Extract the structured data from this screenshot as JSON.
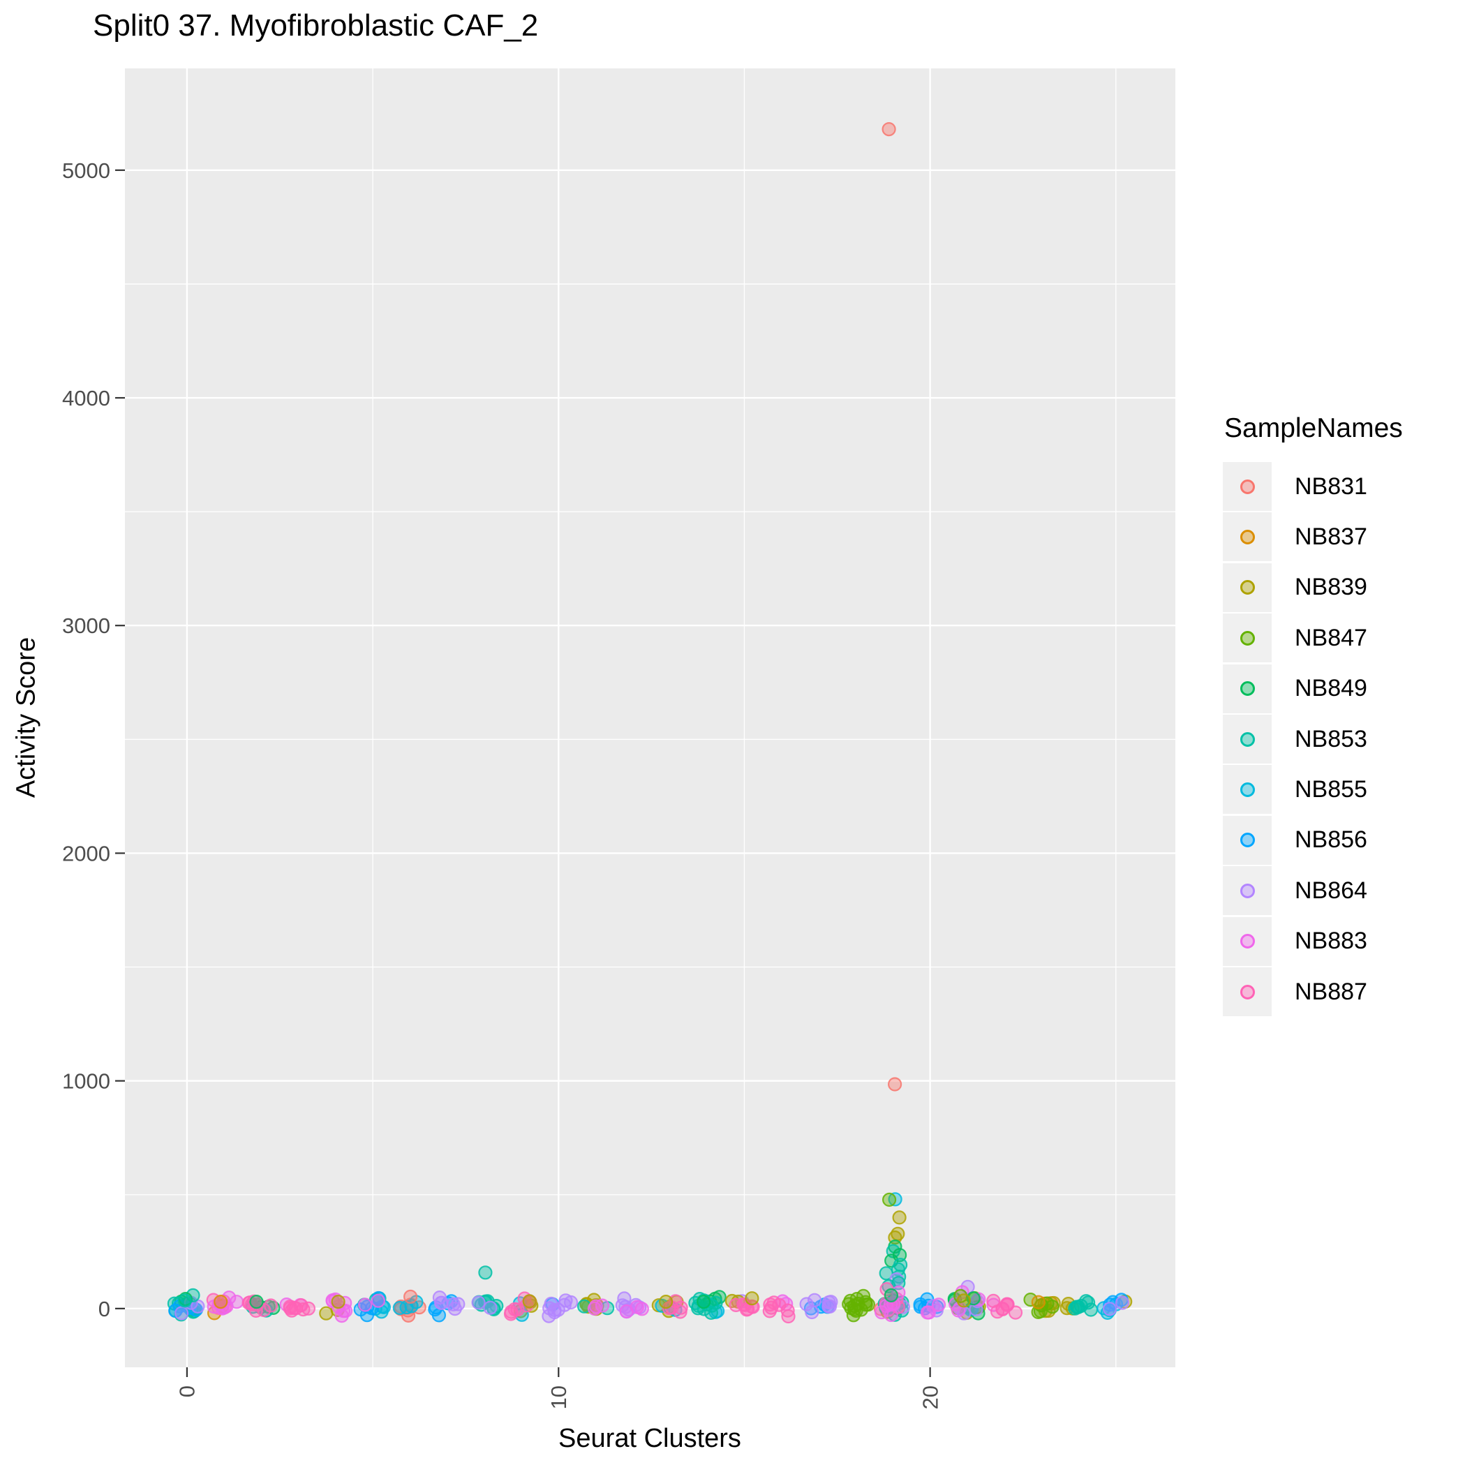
{
  "title": "Split0 37. Myofibroblastic CAF_2",
  "chart_data": {
    "type": "scatter",
    "subtype": "jittered-strip",
    "title": "Split0 37. Myofibroblastic CAF_2",
    "xlabel": "Seurat Clusters",
    "ylabel": "Activity Score",
    "legend_title": "SampleNames",
    "legend_position": "right",
    "grid": true,
    "panel_bg": "#EBEBEB",
    "grid_color": "#FFFFFF",
    "tick_color": "#333333",
    "tick_label_color": "#4D4D4D",
    "x_ticks": [
      0,
      10,
      20
    ],
    "x_minor_ticks": [
      5,
      15,
      25
    ],
    "y_ticks": [
      0,
      1000,
      2000,
      3000,
      4000,
      5000
    ],
    "y_minor_ticks": [
      500,
      1500,
      2500,
      3500,
      4500
    ],
    "xlim": [
      -1.67,
      26.6
    ],
    "ylim": [
      -258,
      5447
    ],
    "point_alpha": 0.42,
    "samples": [
      {
        "name": "NB831",
        "color": "#F8766D"
      },
      {
        "name": "NB837",
        "color": "#DB8E00"
      },
      {
        "name": "NB839",
        "color": "#AEA200"
      },
      {
        "name": "NB847",
        "color": "#64B200"
      },
      {
        "name": "NB849",
        "color": "#00BD5C"
      },
      {
        "name": "NB853",
        "color": "#00C1A7"
      },
      {
        "name": "NB855",
        "color": "#00BADE"
      },
      {
        "name": "NB856",
        "color": "#00A6FF"
      },
      {
        "name": "NB864",
        "color": "#B385FF"
      },
      {
        "name": "NB883",
        "color": "#EF67EB"
      },
      {
        "name": "NB887",
        "color": "#FF63B6"
      }
    ],
    "band": {
      "note": "dense jittered points near Activity Score 0 for every cluster",
      "y_center": 8,
      "y_spread": 45,
      "x_jitter": 0.34
    },
    "clusters": [
      {
        "cluster": 0,
        "members": [
          [
            "NB849",
            3
          ],
          [
            "NB853",
            9
          ],
          [
            "NB856",
            4
          ],
          [
            "NB864",
            3
          ]
        ]
      },
      {
        "cluster": 1,
        "members": [
          [
            "NB837",
            2
          ],
          [
            "NB887",
            4
          ],
          [
            "NB883",
            7
          ]
        ]
      },
      {
        "cluster": 2,
        "members": [
          [
            "NB849",
            3
          ],
          [
            "NB853",
            2
          ],
          [
            "NB887",
            8
          ]
        ]
      },
      {
        "cluster": 3,
        "members": [
          [
            "NB883",
            2
          ],
          [
            "NB887",
            8
          ]
        ]
      },
      {
        "cluster": 4,
        "members": [
          [
            "NB839",
            2
          ],
          [
            "NB883",
            8
          ]
        ]
      },
      {
        "cluster": 5,
        "members": [
          [
            "NB853",
            3
          ],
          [
            "NB855",
            4
          ],
          [
            "NB856",
            5
          ],
          [
            "NB883",
            2
          ]
        ]
      },
      {
        "cluster": 6,
        "members": [
          [
            "NB831",
            7
          ],
          [
            "NB855",
            4
          ]
        ]
      },
      {
        "cluster": 7,
        "members": [
          [
            "NB856",
            5
          ],
          [
            "NB864",
            6
          ]
        ]
      },
      {
        "cluster": 8,
        "members": [
          [
            "NB853",
            8
          ],
          [
            "NB864",
            2
          ]
        ]
      },
      {
        "cluster": 9,
        "members": [
          [
            "NB839",
            3
          ],
          [
            "NB855",
            2
          ],
          [
            "NB887",
            7
          ]
        ]
      },
      {
        "cluster": 10,
        "members": [
          [
            "NB856",
            1
          ],
          [
            "NB864",
            9
          ]
        ]
      },
      {
        "cluster": 11,
        "members": [
          [
            "NB839",
            7
          ],
          [
            "NB853",
            2
          ],
          [
            "NB883",
            3
          ]
        ]
      },
      {
        "cluster": 12,
        "members": [
          [
            "NB864",
            7
          ],
          [
            "NB883",
            3
          ]
        ]
      },
      {
        "cluster": 13,
        "members": [
          [
            "NB839",
            4
          ],
          [
            "NB855",
            2
          ],
          [
            "NB887",
            5
          ]
        ]
      },
      {
        "cluster": 14,
        "members": [
          [
            "NB855",
            2
          ],
          [
            "NB849",
            4
          ],
          [
            "NB853",
            8
          ]
        ]
      },
      {
        "cluster": 15,
        "members": [
          [
            "NB864",
            1
          ],
          [
            "NB839",
            2
          ],
          [
            "NB887",
            7
          ]
        ]
      },
      {
        "cluster": 16,
        "members": [
          [
            "NB883",
            2
          ],
          [
            "NB887",
            7
          ]
        ]
      },
      {
        "cluster": 17,
        "members": [
          [
            "NB856",
            4
          ],
          [
            "NB864",
            7
          ]
        ]
      },
      {
        "cluster": 18,
        "members": [
          [
            "NB847",
            12
          ]
        ]
      },
      {
        "cluster": 19,
        "members": [
          [
            "NB831",
            1
          ],
          [
            "NB839",
            2
          ],
          [
            "NB849",
            4
          ],
          [
            "NB853",
            7
          ],
          [
            "NB864",
            2
          ],
          [
            "NB887",
            4
          ],
          [
            "NB883",
            5
          ]
        ]
      },
      {
        "cluster": 20,
        "members": [
          [
            "NB856",
            6
          ],
          [
            "NB864",
            2
          ],
          [
            "NB883",
            3
          ]
        ]
      },
      {
        "cluster": 21,
        "members": [
          [
            "NB839",
            2
          ],
          [
            "NB847",
            4
          ],
          [
            "NB849",
            3
          ],
          [
            "NB853",
            2
          ],
          [
            "NB864",
            4
          ],
          [
            "NB883",
            3
          ]
        ]
      },
      {
        "cluster": 22,
        "members": [
          [
            "NB883",
            1
          ],
          [
            "NB887",
            8
          ]
        ]
      },
      {
        "cluster": 23,
        "members": [
          [
            "NB837",
            2
          ],
          [
            "NB839",
            3
          ],
          [
            "NB847",
            7
          ]
        ]
      },
      {
        "cluster": 24,
        "members": [
          [
            "NB839",
            3
          ],
          [
            "NB853",
            8
          ]
        ]
      },
      {
        "cluster": 25,
        "members": [
          [
            "NB839",
            1
          ],
          [
            "NB855",
            4
          ],
          [
            "NB856",
            3
          ],
          [
            "NB864",
            2
          ]
        ]
      }
    ],
    "outliers": [
      {
        "cluster": 19,
        "sample": "NB831",
        "value": 5180
      },
      {
        "cluster": 19,
        "sample": "NB831",
        "value": 985
      },
      {
        "cluster": 19,
        "sample": "NB855",
        "value": 480
      },
      {
        "cluster": 19,
        "sample": "NB847",
        "value": 478
      },
      {
        "cluster": 19,
        "sample": "NB839",
        "value": 400
      },
      {
        "cluster": 19,
        "sample": "NB839",
        "value": 328
      },
      {
        "cluster": 19,
        "sample": "NB839",
        "value": 312
      },
      {
        "cluster": 19,
        "sample": "NB849",
        "value": 272
      },
      {
        "cluster": 19,
        "sample": "NB853",
        "value": 252
      },
      {
        "cluster": 19,
        "sample": "NB849",
        "value": 235
      },
      {
        "cluster": 19,
        "sample": "NB849",
        "value": 210
      },
      {
        "cluster": 19,
        "sample": "NB853",
        "value": 192
      },
      {
        "cluster": 19,
        "sample": "NB853",
        "value": 172
      },
      {
        "cluster": 19,
        "sample": "NB853",
        "value": 155
      },
      {
        "cluster": 19,
        "sample": "NB853",
        "value": 140
      },
      {
        "cluster": 19,
        "sample": "NB864",
        "value": 128
      },
      {
        "cluster": 19,
        "sample": "NB853",
        "value": 112
      },
      {
        "cluster": 19,
        "sample": "NB853",
        "value": 98
      },
      {
        "cluster": 19,
        "sample": "NB887",
        "value": 85
      },
      {
        "cluster": 19,
        "sample": "NB883",
        "value": 70
      },
      {
        "cluster": 19,
        "sample": "NB849",
        "value": 58
      },
      {
        "cluster": 8,
        "sample": "NB853",
        "value": 158
      },
      {
        "cluster": 0,
        "sample": "NB853",
        "value": 58
      },
      {
        "cluster": 0,
        "sample": "NB849",
        "value": 42
      },
      {
        "cluster": 0,
        "sample": "NB853",
        "value": 35
      },
      {
        "cluster": 6,
        "sample": "NB831",
        "value": 52
      },
      {
        "cluster": 14,
        "sample": "NB853",
        "value": 42
      },
      {
        "cluster": 14,
        "sample": "NB849",
        "value": 30
      },
      {
        "cluster": 15,
        "sample": "NB839",
        "value": 45
      },
      {
        "cluster": 18,
        "sample": "NB847",
        "value": 55
      },
      {
        "cluster": 18,
        "sample": "NB847",
        "value": 42
      },
      {
        "cluster": 21,
        "sample": "NB864",
        "value": 95
      },
      {
        "cluster": 21,
        "sample": "NB883",
        "value": 72
      },
      {
        "cluster": 21,
        "sample": "NB847",
        "value": 55
      },
      {
        "cluster": 21,
        "sample": "NB849",
        "value": 45
      },
      {
        "cluster": 21,
        "sample": "NB839",
        "value": 35
      },
      {
        "cluster": 1,
        "sample": "NB837",
        "value": 30
      },
      {
        "cluster": 9,
        "sample": "NB839",
        "value": 32
      },
      {
        "cluster": 4,
        "sample": "NB839",
        "value": 30
      },
      {
        "cluster": 13,
        "sample": "NB839",
        "value": 30
      },
      {
        "cluster": 23,
        "sample": "NB837",
        "value": 28
      },
      {
        "cluster": 2,
        "sample": "NB849",
        "value": 30
      }
    ]
  }
}
